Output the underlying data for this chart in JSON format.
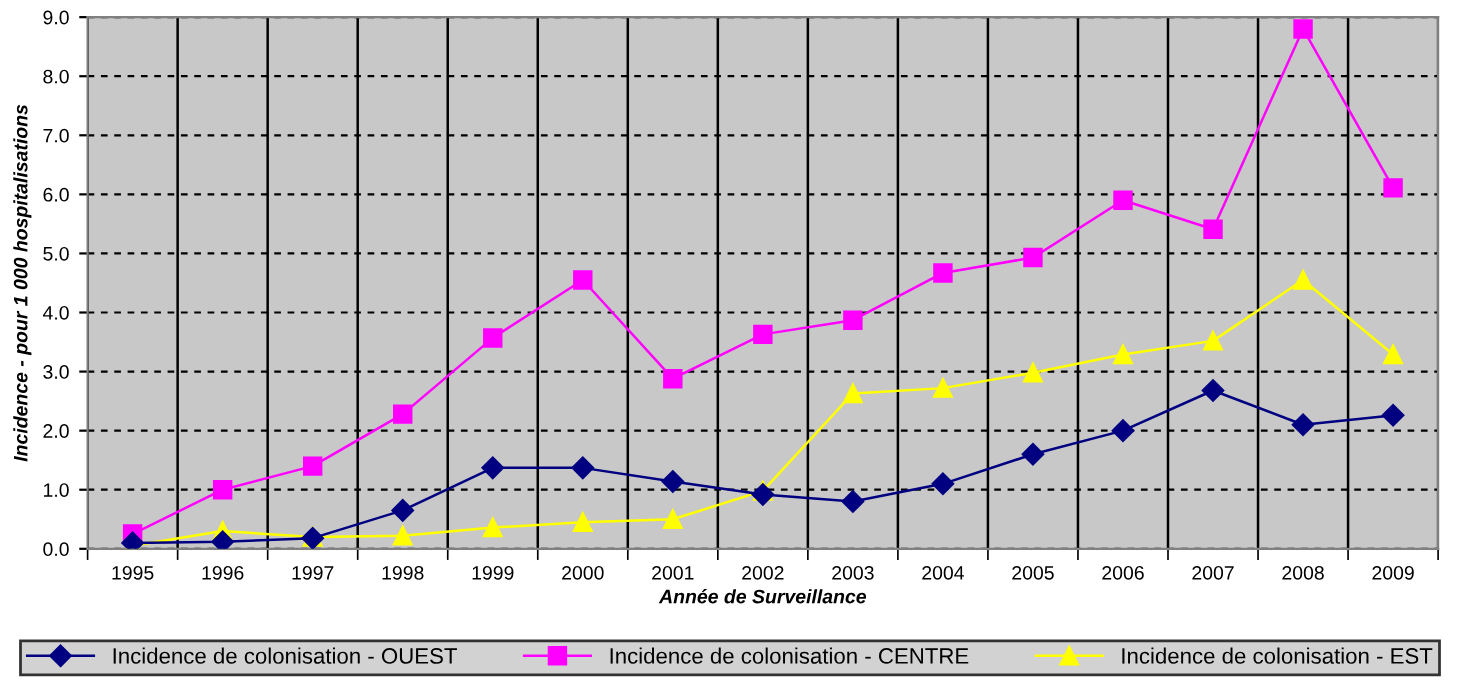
{
  "chart_data": {
    "type": "line",
    "xlabel": "Année de Surveillance",
    "ylabel": "Incidence - pour 1 000 hospitalisations",
    "categories": [
      "1995",
      "1996",
      "1997",
      "1998",
      "1999",
      "2000",
      "2001",
      "2002",
      "2003",
      "2004",
      "2005",
      "2006",
      "2007",
      "2008",
      "2009"
    ],
    "series": [
      {
        "name": "Incidence de colonisation - OUEST",
        "color": "#000080",
        "marker": "diamond",
        "values": [
          0.1,
          0.12,
          0.18,
          0.65,
          1.37,
          1.37,
          1.14,
          0.92,
          0.8,
          1.1,
          1.6,
          2.0,
          2.68,
          2.1,
          2.26
        ]
      },
      {
        "name": "Incidence de colonisation - CENTRE",
        "color": "#ff00ff",
        "marker": "square",
        "values": [
          0.25,
          1.0,
          1.4,
          2.28,
          3.57,
          4.55,
          2.88,
          3.63,
          3.87,
          4.67,
          4.93,
          5.9,
          5.41,
          8.8,
          6.11
        ]
      },
      {
        "name": "Incidence de colonisation - EST",
        "color": "#ffff00",
        "marker": "triangle",
        "values": [
          0.05,
          0.3,
          0.2,
          0.22,
          0.36,
          0.45,
          0.5,
          0.98,
          2.63,
          2.72,
          2.98,
          3.29,
          3.52,
          4.55,
          3.29
        ]
      }
    ],
    "ylim": [
      0,
      9
    ],
    "yticks": [
      {
        "value": 0,
        "label": "0.0"
      },
      {
        "value": 1,
        "label": "1.0"
      },
      {
        "value": 2,
        "label": "2.0"
      },
      {
        "value": 3,
        "label": "3.0"
      },
      {
        "value": 4,
        "label": "4.0"
      },
      {
        "value": 5,
        "label": "5.0"
      },
      {
        "value": 6,
        "label": "6.0"
      },
      {
        "value": 7,
        "label": "7.0"
      },
      {
        "value": 8,
        "label": "8.0"
      },
      {
        "value": 9,
        "label": "9.0"
      }
    ],
    "grid": true,
    "legend": "bottom",
    "line_style": "solid"
  }
}
